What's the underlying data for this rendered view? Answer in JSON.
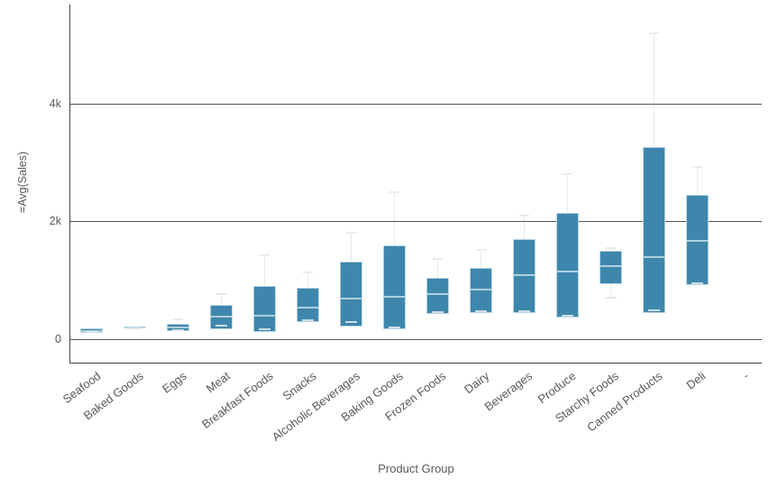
{
  "colors": {
    "box_fill": "#3e87ac",
    "box_border": "#b7d4e4",
    "median_line": "#aecfe0",
    "whisker": "#e9ebed",
    "gridline": "#545454",
    "axis": "#454545",
    "text": "#595959",
    "background": "#ffffff"
  },
  "chart_data": {
    "type": "boxplot",
    "title": "",
    "xlabel": "Product Group",
    "ylabel": "=Avg(Sales)",
    "ylim": [
      -420,
      5690
    ],
    "grid": true,
    "y_ticks": [
      {
        "value": 0,
        "label": "0"
      },
      {
        "value": 2000,
        "label": "2k"
      },
      {
        "value": 4000,
        "label": "4k"
      }
    ],
    "categories": [
      "Seafood",
      "Baked Goods",
      "Eggs",
      "Meat",
      "Breakfast Foods",
      "Snacks",
      "Alcoholic Beverages",
      "Baking Goods",
      "Frozen Foods",
      "Dairy",
      "Beverages",
      "Produce",
      "Starchy Foods",
      "Canned Products",
      "Deli",
      "-"
    ],
    "boxes": [
      {
        "category": "Seafood",
        "min": 120,
        "q1": 100,
        "median": 135,
        "q3": 175,
        "max": 175
      },
      {
        "category": "Baked Goods",
        "min": 185,
        "q1": 175,
        "median": 190,
        "q3": 205,
        "max": 205
      },
      {
        "category": "Eggs",
        "min": 155,
        "q1": 140,
        "median": 195,
        "q3": 250,
        "max": 330
      },
      {
        "category": "Meat",
        "min": 230,
        "q1": 170,
        "median": 380,
        "q3": 575,
        "max": 755
      },
      {
        "category": "Breakfast Foods",
        "min": 165,
        "q1": 110,
        "median": 400,
        "q3": 905,
        "max": 1420
      },
      {
        "category": "Snacks",
        "min": 320,
        "q1": 280,
        "median": 530,
        "q3": 870,
        "max": 1135
      },
      {
        "category": "Alcoholic Beverages",
        "min": 290,
        "q1": 215,
        "median": 690,
        "q3": 1310,
        "max": 1800
      },
      {
        "category": "Baking Goods",
        "min": 200,
        "q1": 165,
        "median": 710,
        "q3": 1585,
        "max": 2490
      },
      {
        "category": "Frozen Foods",
        "min": 455,
        "q1": 420,
        "median": 760,
        "q3": 1035,
        "max": 1360
      },
      {
        "category": "Dairy",
        "min": 470,
        "q1": 440,
        "median": 840,
        "q3": 1210,
        "max": 1510
      },
      {
        "category": "Beverages",
        "min": 475,
        "q1": 440,
        "median": 1085,
        "q3": 1705,
        "max": 2100
      },
      {
        "category": "Produce",
        "min": 395,
        "q1": 360,
        "median": 1140,
        "q3": 2140,
        "max": 2800
      },
      {
        "category": "Starchy Foods",
        "min": 705,
        "q1": 925,
        "median": 1235,
        "q3": 1495,
        "max": 1545
      },
      {
        "category": "Canned Products",
        "min": 480,
        "q1": 445,
        "median": 1390,
        "q3": 3260,
        "max": 5200
      },
      {
        "category": "Deli",
        "min": 945,
        "q1": 910,
        "median": 1675,
        "q3": 2455,
        "max": 2925
      },
      {
        "category": "-",
        "min": null,
        "q1": null,
        "median": null,
        "q3": null,
        "max": null
      }
    ]
  }
}
